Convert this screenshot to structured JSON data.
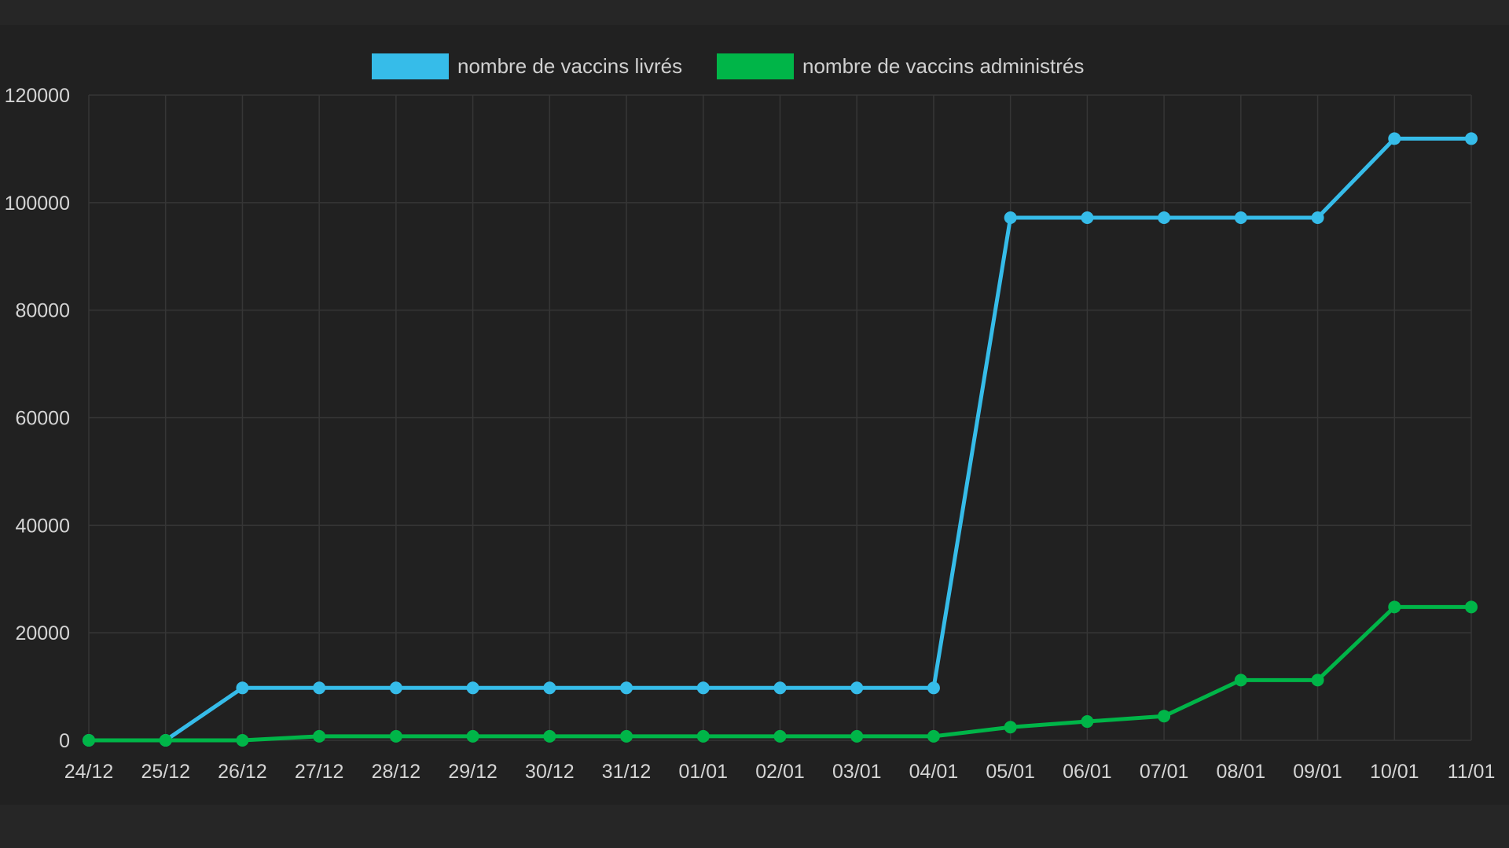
{
  "chart_data": {
    "type": "line",
    "categories": [
      "24/12",
      "25/12",
      "26/12",
      "27/12",
      "28/12",
      "29/12",
      "30/12",
      "31/12",
      "01/01",
      "02/01",
      "03/01",
      "04/01",
      "05/01",
      "06/01",
      "07/01",
      "08/01",
      "09/01",
      "10/01",
      "11/01"
    ],
    "series": [
      {
        "name": "nombre de vaccins livrés",
        "color": "#36BCE9",
        "values": [
          0,
          0,
          9750,
          9750,
          9750,
          9750,
          9750,
          9750,
          9750,
          9750,
          9750,
          9750,
          97200,
          97200,
          97200,
          97200,
          97200,
          111900,
          111900
        ]
      },
      {
        "name": "nombre de vaccins administrés",
        "color": "#00B548",
        "values": [
          0,
          0,
          0,
          750,
          750,
          750,
          750,
          750,
          750,
          750,
          750,
          750,
          2450,
          3500,
          4500,
          11200,
          11200,
          24800,
          24800
        ]
      }
    ],
    "y_ticks": [
      "0",
      "20000",
      "40000",
      "60000",
      "80000",
      "100000",
      "120000"
    ],
    "ylim": [
      0,
      120000
    ],
    "grid": true,
    "legend_position": "top-center",
    "title": "",
    "xlabel": "",
    "ylabel": ""
  }
}
